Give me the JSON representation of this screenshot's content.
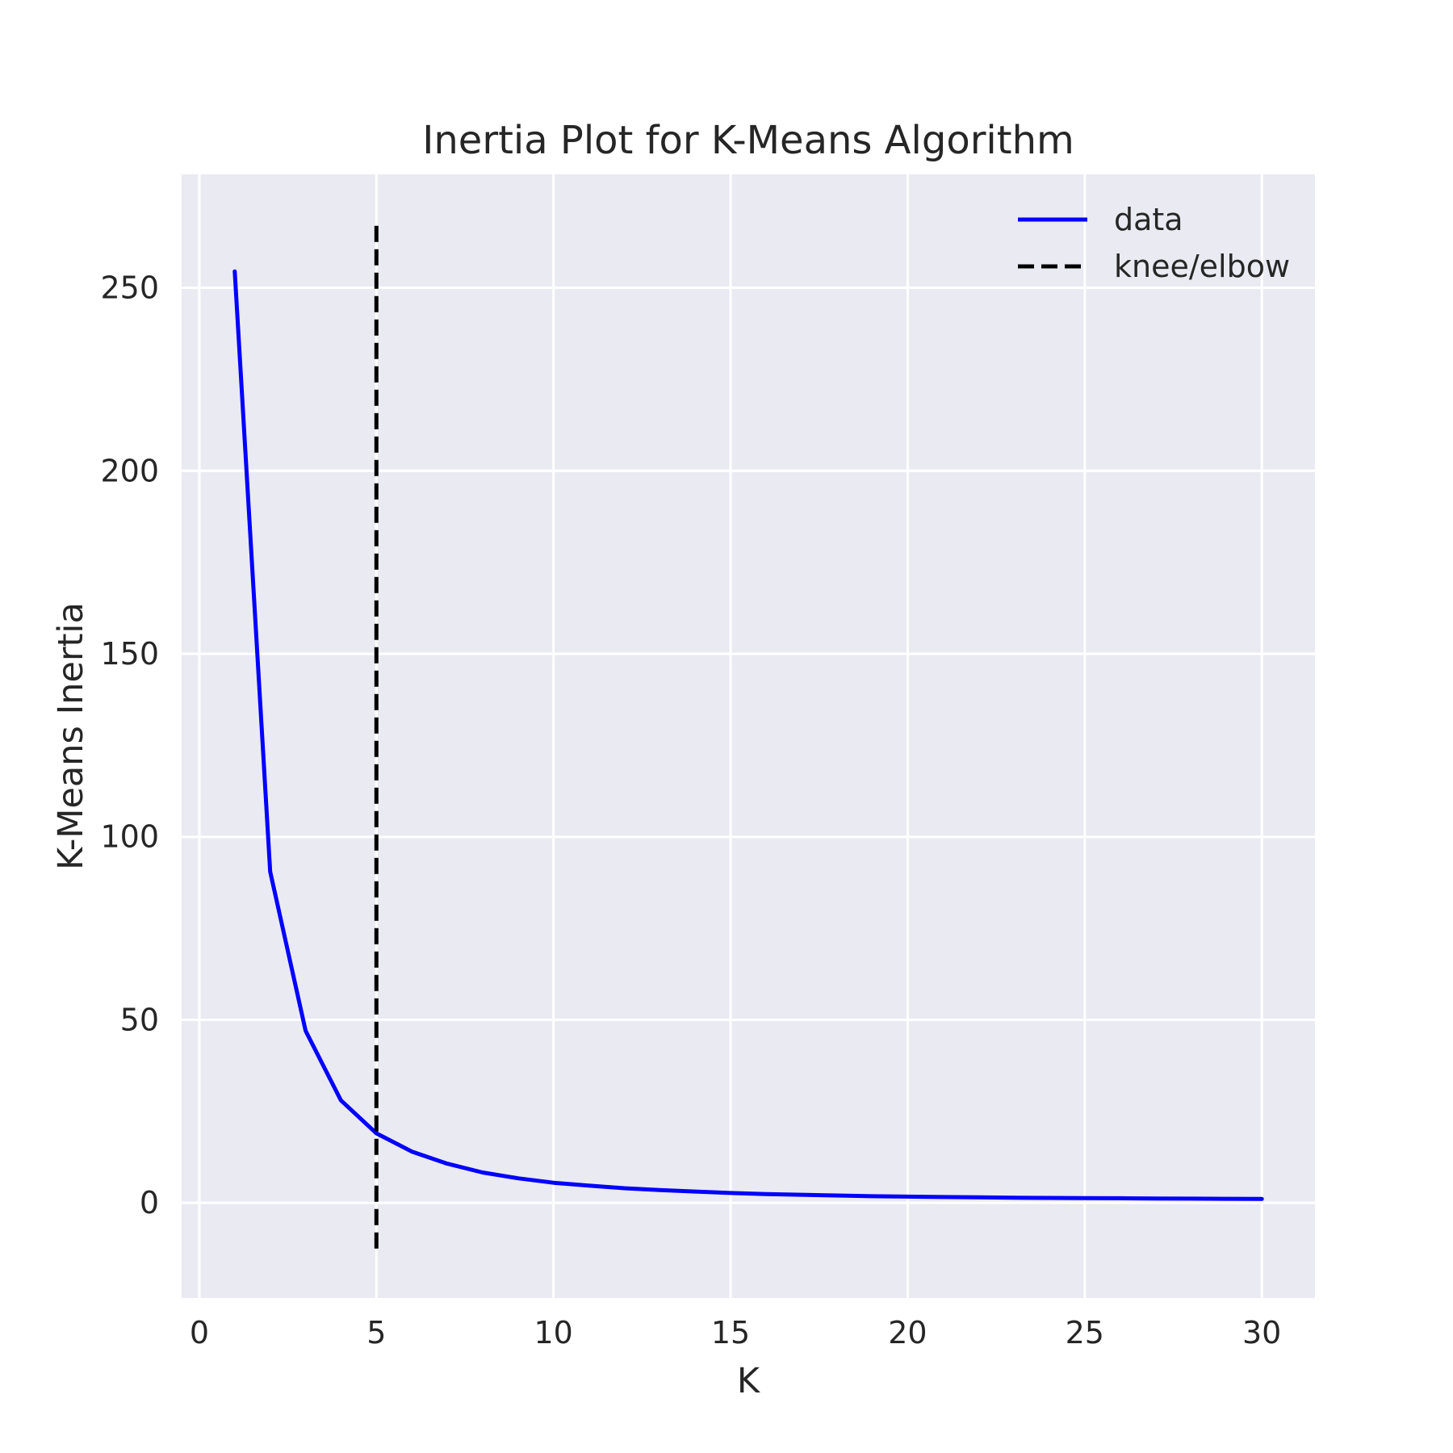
{
  "chart_data": {
    "type": "line",
    "title": "Inertia Plot for K-Means Algorithm",
    "xlabel": "K",
    "ylabel": "K-Means Inertia",
    "xlim": [
      -0.5,
      31.5
    ],
    "ylim": [
      -26,
      281
    ],
    "xticks": [
      0,
      5,
      10,
      15,
      20,
      25,
      30
    ],
    "yticks": [
      0,
      50,
      100,
      150,
      200,
      250
    ],
    "grid": true,
    "legend_position": "top-right",
    "background_color": "#eaeaf2",
    "grid_color": "#ffffff",
    "series": [
      {
        "name": "data",
        "color": "#0000ff",
        "style": "solid",
        "x": [
          1,
          2,
          3,
          4,
          5,
          6,
          7,
          8,
          9,
          10,
          11,
          12,
          13,
          14,
          15,
          16,
          17,
          18,
          19,
          20,
          21,
          22,
          23,
          24,
          25,
          26,
          27,
          28,
          29,
          30
        ],
        "y": [
          254.5,
          90.5,
          47,
          28,
          19,
          14,
          10.7,
          8.3,
          6.7,
          5.5,
          4.7,
          4,
          3.5,
          3.1,
          2.7,
          2.4,
          2.2,
          2,
          1.8,
          1.7,
          1.6,
          1.5,
          1.4,
          1.35,
          1.3,
          1.25,
          1.2,
          1.15,
          1.1,
          1.05
        ]
      },
      {
        "name": "knee/elbow",
        "color": "#000000",
        "style": "dashed",
        "x": [
          5,
          5
        ],
        "y": [
          -12.5,
          267
        ]
      }
    ]
  }
}
